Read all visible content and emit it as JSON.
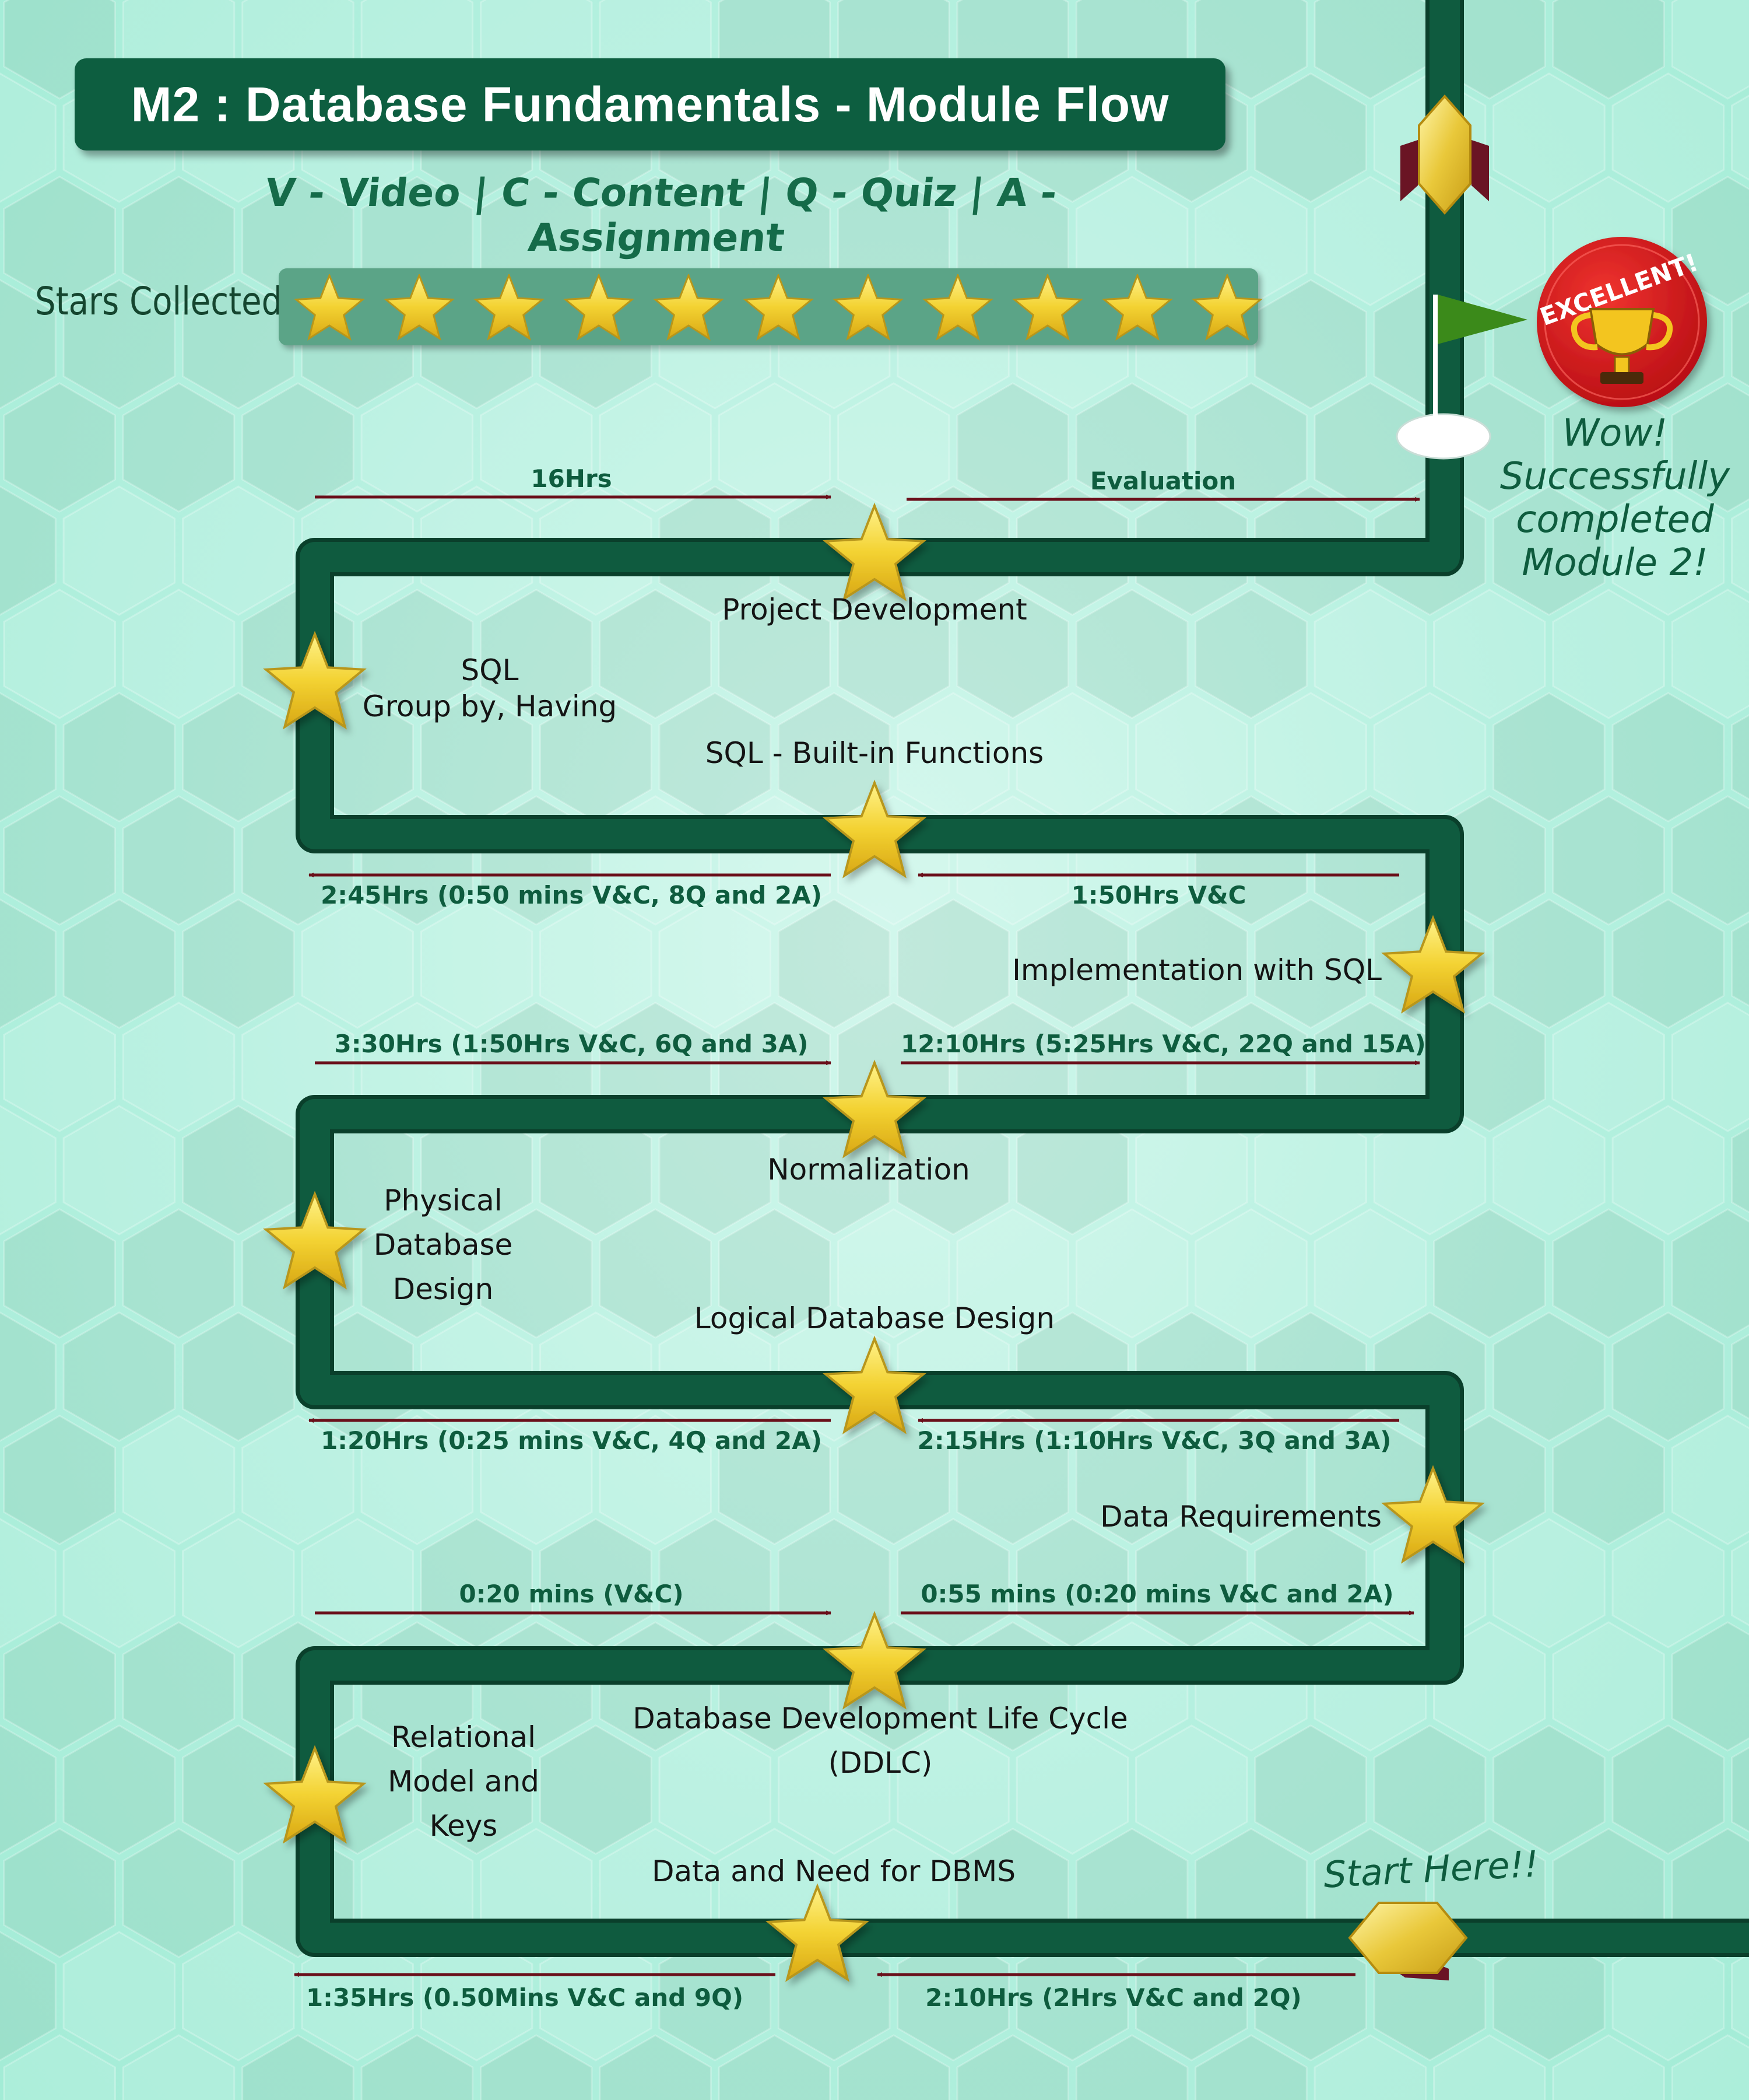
{
  "title": "M2 : Database Fundamentals - Module Flow",
  "legend": "V - Video | C - Content | Q - Quiz | A - Assignment",
  "stars_collected": {
    "label": "Stars Collected",
    "count": 11
  },
  "badge": {
    "text": "EXCELLENT!",
    "icon": "trophy-icon"
  },
  "completion_message": [
    "Wow!",
    "Successfully",
    "completed",
    "Module 2!"
  ],
  "start_label": "Start Here!!",
  "topics": {
    "data_need_dbms": "Data and Need for DBMS",
    "relational_model": [
      "Relational",
      "Model and",
      "Keys"
    ],
    "ddlc": [
      "Database Development Life Cycle",
      "(DDLC)"
    ],
    "data_requirements": "Data Requirements",
    "logical_design": "Logical Database Design",
    "physical_design": [
      "Physical",
      "Database",
      "Design"
    ],
    "normalization": "Normalization",
    "implementation_sql": "Implementation with SQL",
    "sql_builtin": "SQL - Built-in Functions",
    "sql_groupby": [
      "SQL",
      "Group by, Having"
    ],
    "project_development": "Project Development"
  },
  "durations": {
    "d1": "2:10Hrs (2Hrs V&C and 2Q)",
    "d2": "1:35Hrs (0.50Mins V&C and 9Q)",
    "d3": "0:20 mins (V&C)",
    "d4": "0:55 mins (0:20 mins V&C and 2A)",
    "d5": "2:15Hrs (1:10Hrs V&C, 3Q and 3A)",
    "d6": "1:20Hrs (0:25 mins V&C, 4Q and 2A)",
    "d7": "3:30Hrs (1:50Hrs V&C, 6Q and 3A)",
    "d8": "12:10Hrs (5:25Hrs V&C, 22Q and 15A)",
    "d9": "1:50Hrs V&C",
    "d10": "2:45Hrs (0:50 mins V&C, 8Q and 2A)",
    "d11": "16Hrs",
    "d12": "Evaluation"
  },
  "colors": {
    "track": "#0f5b3f",
    "star_fill": "#f3d232",
    "star_outline": "#b8961a",
    "arrow": "#6a0f1a",
    "badge_red": "#d8161d",
    "flag": "#3b8a1a"
  }
}
